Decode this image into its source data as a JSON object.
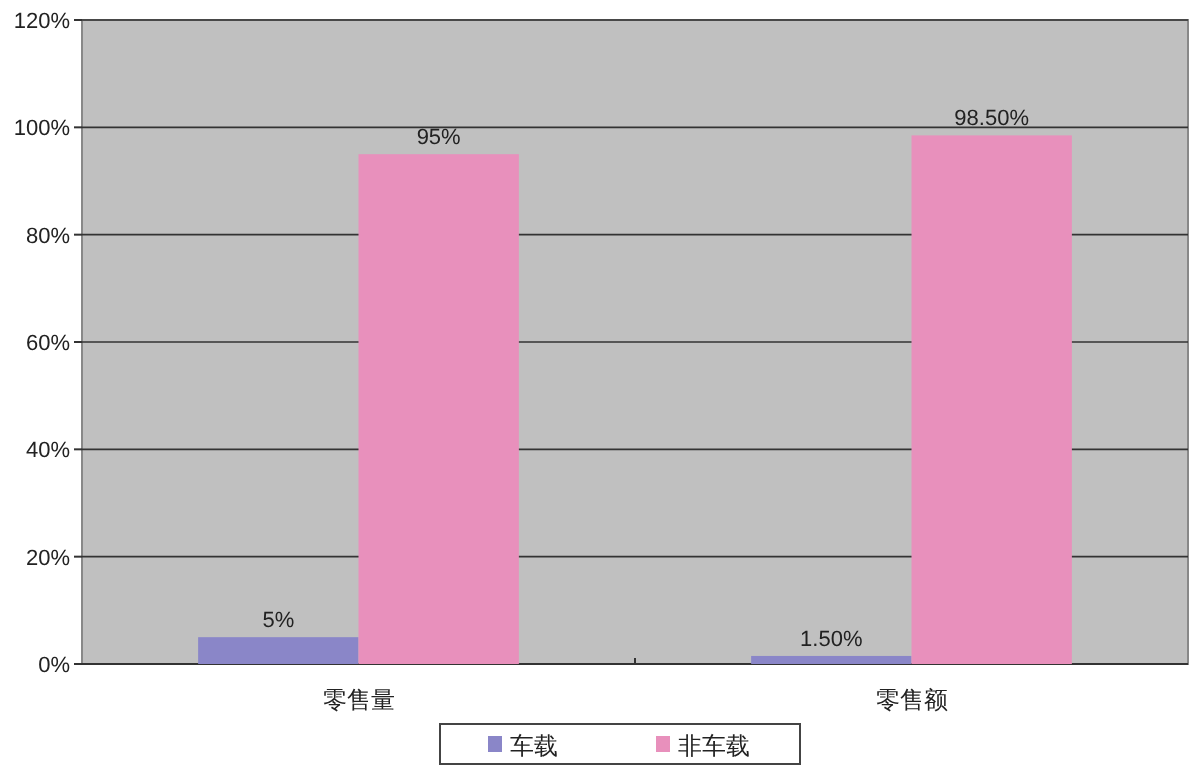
{
  "chart_data": {
    "type": "bar",
    "categories": [
      "零售量",
      "零售额"
    ],
    "series": [
      {
        "name": "车载",
        "color": "#8a86c8",
        "values": [
          5,
          1.5
        ],
        "value_labels": [
          "5%",
          "1.50%"
        ]
      },
      {
        "name": "非车载",
        "color": "#e890bc",
        "values": [
          95,
          98.5
        ],
        "value_labels": [
          "95%",
          "98.50%"
        ]
      }
    ],
    "ylim": [
      0,
      120
    ],
    "yticks": [
      {
        "value": 0,
        "label": "0%"
      },
      {
        "value": 20,
        "label": "20%"
      },
      {
        "value": 40,
        "label": "40%"
      },
      {
        "value": 60,
        "label": "60%"
      },
      {
        "value": 80,
        "label": "80%"
      },
      {
        "value": 100,
        "label": "100%"
      },
      {
        "value": 120,
        "label": "120%"
      }
    ],
    "grid": "y",
    "legend": "bottom"
  }
}
